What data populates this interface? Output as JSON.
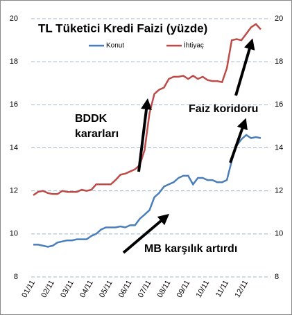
{
  "chart_data": {
    "type": "line",
    "title": "TL Tüketici Kredi Faizi (yüzde)",
    "annotations": [
      "BDDK",
      "kararları",
      "Faiz koridoru",
      "MB karşılık artırdı"
    ],
    "categories": [
      "01/11",
      null,
      null,
      null,
      "02/11",
      null,
      null,
      null,
      "03/11",
      null,
      null,
      null,
      "04/11",
      null,
      null,
      null,
      "05/11",
      null,
      null,
      null,
      "06/11",
      null,
      null,
      null,
      "07/11",
      null,
      null,
      null,
      "08/11",
      null,
      null,
      null,
      "09/11",
      null,
      null,
      null,
      "10/11",
      null,
      null,
      null,
      "11/11",
      null,
      null,
      null,
      "12/11",
      null,
      null,
      null
    ],
    "series": [
      {
        "name": "Konut",
        "color": "#4a7ebb",
        "values": [
          9.5,
          9.5,
          9.45,
          9.4,
          9.45,
          9.6,
          9.65,
          9.7,
          9.7,
          9.75,
          9.75,
          9.75,
          9.9,
          10.0,
          10.2,
          10.3,
          10.3,
          10.3,
          10.35,
          10.3,
          10.4,
          10.4,
          10.7,
          10.9,
          11.1,
          11.7,
          11.9,
          12.2,
          12.3,
          12.4,
          12.6,
          12.7,
          12.7,
          12.3,
          12.6,
          12.6,
          12.5,
          12.5,
          12.4,
          12.4,
          12.5,
          13.4,
          14.1,
          14.4,
          14.6,
          14.45,
          14.5,
          14.45
        ]
      },
      {
        "name": "İhtiyaç",
        "color": "#be4b48",
        "values": [
          11.8,
          11.95,
          12.0,
          11.9,
          11.85,
          11.85,
          12.0,
          11.95,
          11.95,
          11.95,
          12.05,
          12.0,
          12.05,
          12.3,
          12.3,
          12.3,
          12.3,
          12.5,
          12.75,
          12.8,
          12.9,
          13.0,
          13.2,
          13.9,
          15.6,
          16.5,
          16.7,
          16.8,
          17.2,
          17.3,
          17.3,
          17.35,
          17.2,
          17.35,
          17.2,
          17.3,
          17.15,
          17.1,
          17.1,
          17.05,
          17.7,
          19.0,
          19.05,
          19.0,
          19.3,
          19.6,
          19.75,
          19.5
        ]
      }
    ],
    "ylim": [
      8,
      20
    ],
    "yticks": [
      8,
      10,
      12,
      14,
      16,
      18,
      20
    ],
    "grid": true,
    "legend": "top"
  }
}
